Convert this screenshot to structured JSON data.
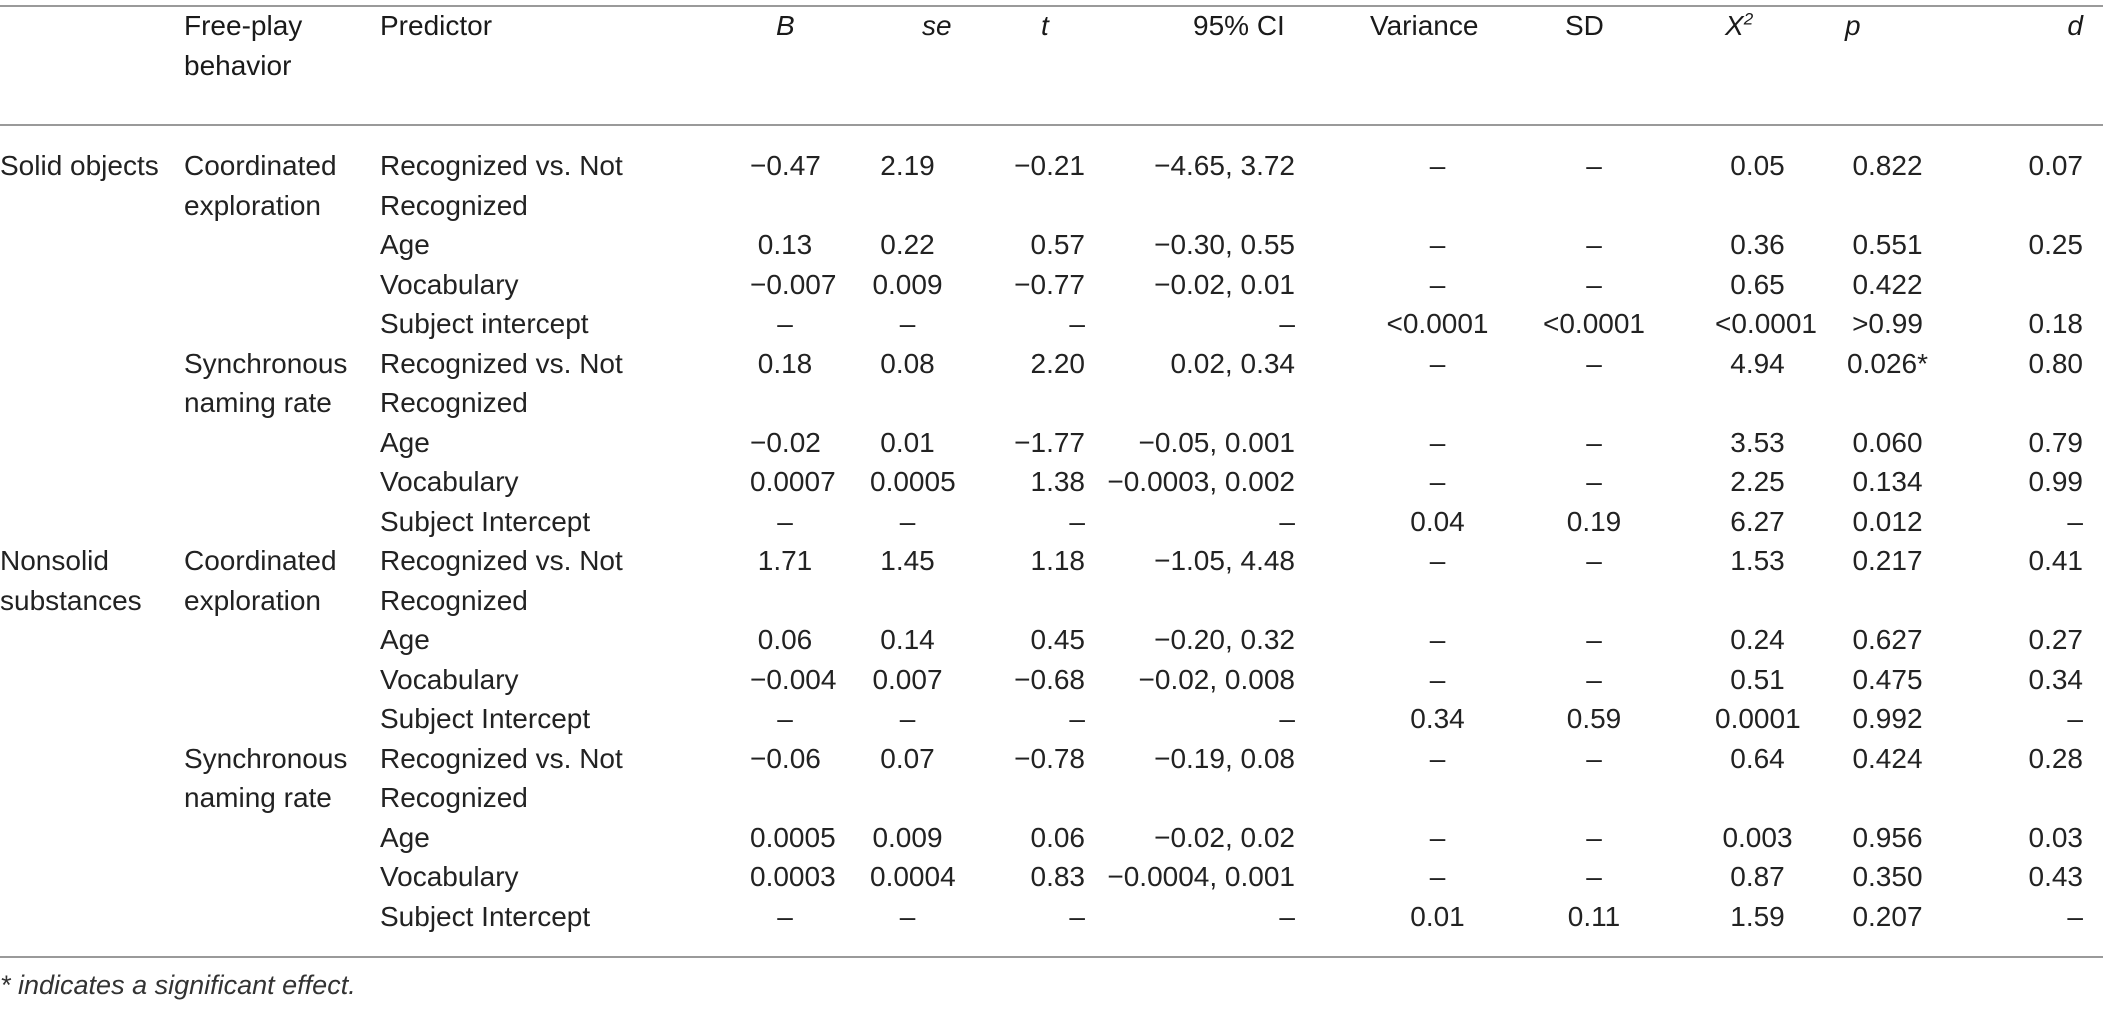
{
  "columns": [
    "",
    "Free-play behavior",
    "Predictor",
    "B",
    "se",
    "t",
    "95% CI",
    "Variance",
    "SD",
    "X",
    "p",
    "d"
  ],
  "chi_sup": "2",
  "rows": [
    {
      "group": "Solid objects",
      "behavior": "Coordinated exploration",
      "predictor": "Recognized vs. Not Recognized",
      "B": "−0.47",
      "se": "2.19",
      "t": "−0.21",
      "ci": "−4.65, 3.72",
      "var": "–",
      "sd": "–",
      "chi": "0.05",
      "p": "0.822",
      "d": "0.07"
    },
    {
      "group": "",
      "behavior": "",
      "predictor": "Age",
      "B": "0.13",
      "se": "0.22",
      "t": "0.57",
      "ci": "−0.30, 0.55",
      "var": "–",
      "sd": "–",
      "chi": "0.36",
      "p": "0.551",
      "d": "0.25"
    },
    {
      "group": "",
      "behavior": "",
      "predictor": "Vocabulary",
      "B": "−0.007",
      "se": "0.009",
      "t": "−0.77",
      "ci": "−0.02, 0.01",
      "var": "–",
      "sd": "–",
      "chi": "0.65",
      "p": "0.422",
      "d": ""
    },
    {
      "group": "",
      "behavior": "",
      "predictor": "Subject intercept",
      "B": "–",
      "se": "–",
      "t": "–",
      "ci": "–",
      "var": "<0.0001",
      "sd": "<0.0001",
      "chi": "<0.0001",
      "p": ">0.99",
      "d": "0.18"
    },
    {
      "group": "",
      "behavior": "Synchronous naming rate",
      "predictor": "Recognized vs. Not Recognized",
      "B": "0.18",
      "se": "0.08",
      "t": "2.20",
      "ci": "0.02, 0.34",
      "var": "–",
      "sd": "–",
      "chi": "4.94",
      "p": "0.026*",
      "d": "0.80"
    },
    {
      "group": "",
      "behavior": "",
      "predictor": "Age",
      "B": "−0.02",
      "se": "0.01",
      "t": "−1.77",
      "ci": "−0.05, 0.001",
      "var": "–",
      "sd": "–",
      "chi": "3.53",
      "p": "0.060",
      "d": "0.79"
    },
    {
      "group": "",
      "behavior": "",
      "predictor": "Vocabulary",
      "B": "0.0007",
      "se": "0.0005",
      "t": "1.38",
      "ci": "−0.0003, 0.002",
      "var": "–",
      "sd": "–",
      "chi": "2.25",
      "p": "0.134",
      "d": "0.99"
    },
    {
      "group": "",
      "behavior": "",
      "predictor": "Subject Intercept",
      "B": "–",
      "se": "–",
      "t": "–",
      "ci": "–",
      "var": "0.04",
      "sd": "0.19",
      "chi": "6.27",
      "p": "0.012",
      "d": "–"
    },
    {
      "group": "Nonsolid substances",
      "behavior": "Coordinated exploration",
      "predictor": "Recognized vs. Not Recognized",
      "B": "1.71",
      "se": "1.45",
      "t": "1.18",
      "ci": "−1.05, 4.48",
      "var": "–",
      "sd": "–",
      "chi": "1.53",
      "p": "0.217",
      "d": "0.41"
    },
    {
      "group": "",
      "behavior": "",
      "predictor": "Age",
      "B": "0.06",
      "se": "0.14",
      "t": "0.45",
      "ci": "−0.20, 0.32",
      "var": "–",
      "sd": "–",
      "chi": "0.24",
      "p": "0.627",
      "d": "0.27"
    },
    {
      "group": "",
      "behavior": "",
      "predictor": "Vocabulary",
      "B": "−0.004",
      "se": "0.007",
      "t": "−0.68",
      "ci": "−0.02, 0.008",
      "var": "–",
      "sd": "–",
      "chi": "0.51",
      "p": "0.475",
      "d": "0.34"
    },
    {
      "group": "",
      "behavior": "",
      "predictor": "Subject Intercept",
      "B": "–",
      "se": "–",
      "t": "–",
      "ci": "–",
      "var": "0.34",
      "sd": "0.59",
      "chi": "0.0001",
      "p": "0.992",
      "d": "–"
    },
    {
      "group": "",
      "behavior": "Synchronous naming rate",
      "predictor": "Recognized vs. Not Recognized",
      "B": "−0.06",
      "se": "0.07",
      "t": "−0.78",
      "ci": "−0.19, 0.08",
      "var": "–",
      "sd": "–",
      "chi": "0.64",
      "p": "0.424",
      "d": "0.28"
    },
    {
      "group": "",
      "behavior": "",
      "predictor": "Age",
      "B": "0.0005",
      "se": "0.009",
      "t": "0.06",
      "ci": "−0.02, 0.02",
      "var": "–",
      "sd": "–",
      "chi": "0.003",
      "p": "0.956",
      "d": "0.03"
    },
    {
      "group": "",
      "behavior": "",
      "predictor": "Vocabulary",
      "B": "0.0003",
      "se": "0.0004",
      "t": "0.83",
      "ci": "−0.0004, 0.001",
      "var": "–",
      "sd": "–",
      "chi": "0.87",
      "p": "0.350",
      "d": "0.43"
    },
    {
      "group": "",
      "behavior": "",
      "predictor": "Subject Intercept",
      "B": "–",
      "se": "–",
      "t": "–",
      "ci": "–",
      "var": "0.01",
      "sd": "0.11",
      "chi": "1.59",
      "p": "0.207",
      "d": "–"
    }
  ],
  "footnote": "* indicates a significant effect."
}
